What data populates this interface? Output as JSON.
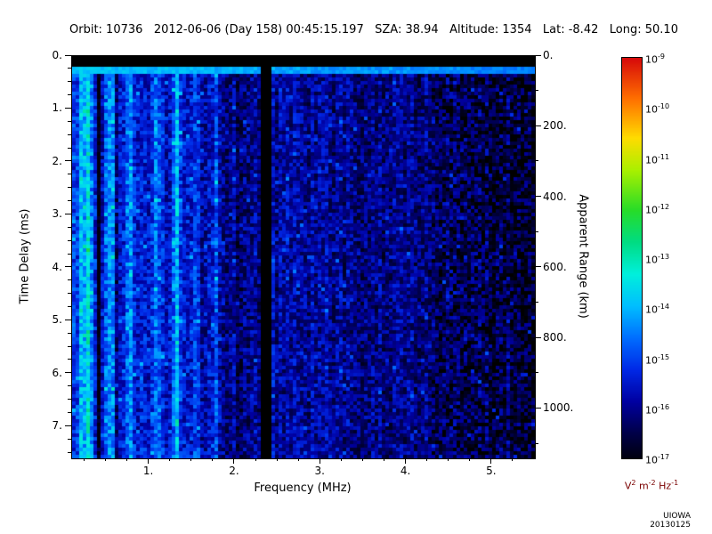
{
  "header": {
    "fields": [
      "Orbit: 10736",
      "2012-06-06 (Day 158) 00:45:15.197",
      "SZA: 38.94",
      "Altitude: 1354",
      "Lat: -8.42",
      "Long: 50.10"
    ]
  },
  "chart_data": {
    "type": "heatmap",
    "title": "",
    "xlabel": "Frequency (MHz)",
    "ylabel_left": "Time Delay (ms)",
    "ylabel_right": "Apparent Range (km)",
    "x_range_mhz": [
      0.1,
      5.5
    ],
    "x_tick_values": [
      1,
      2,
      3,
      4,
      5
    ],
    "x_tick_labels": [
      "1.",
      "2.",
      "3.",
      "4.",
      "5."
    ],
    "y_range_ms": [
      0,
      7.6
    ],
    "y_tick_values_ms": [
      0,
      1,
      2,
      3,
      4,
      5,
      6,
      7
    ],
    "y_tick_labels_ms": [
      "0.",
      "1.",
      "2.",
      "3.",
      "4.",
      "5.",
      "6.",
      "7."
    ],
    "km_per_ms": 150,
    "range_tick_values_km": [
      0,
      200,
      400,
      600,
      800,
      1000
    ],
    "range_tick_labels_km": [
      "0.",
      "200.",
      "400.",
      "600.",
      "800.",
      "1000."
    ],
    "colorbar": {
      "scale": "log10",
      "tick_exponents": [
        -9,
        -10,
        -11,
        -12,
        -13,
        -14,
        -15,
        -16,
        -17
      ],
      "units_parts": [
        {
          "base": "V",
          "exp": "2"
        },
        {
          "base": "m",
          "exp": "-2"
        },
        {
          "base": "Hz",
          "exp": "-1"
        }
      ]
    },
    "colormap_stops": [
      [
        0.0,
        "#000010"
      ],
      [
        0.06,
        "#000046"
      ],
      [
        0.14,
        "#0000a0"
      ],
      [
        0.22,
        "#0028e6"
      ],
      [
        0.3,
        "#006eff"
      ],
      [
        0.38,
        "#00beff"
      ],
      [
        0.46,
        "#00f0dc"
      ],
      [
        0.54,
        "#00dc82"
      ],
      [
        0.62,
        "#28dc28"
      ],
      [
        0.72,
        "#aaf000"
      ],
      [
        0.8,
        "#ffdc00"
      ],
      [
        0.9,
        "#ff6e00"
      ],
      [
        1.0,
        "#d70a0a"
      ]
    ],
    "features": {
      "noise_floor_exp": -16.15,
      "black_top_band_ms": [
        0,
        0.17
      ],
      "bright_horizontal_line_ms": [
        0.17,
        0.31
      ],
      "bright_horizontal_line_exp": -13.85,
      "transmitter_gap_mhz": [
        2.3,
        2.41
      ],
      "low_freq_enhancement_below_mhz": 2.3,
      "low_freq_enhancement_amp": 1.15,
      "bright_vertical_lines": [
        {
          "f": 0.22,
          "amp": 1.3,
          "w": 0.04
        },
        {
          "f": 0.3,
          "amp": 1.6,
          "w": 0.035
        },
        {
          "f": 0.55,
          "amp": 1.2,
          "w": 0.05
        },
        {
          "f": 0.78,
          "amp": 0.9,
          "w": 0.05
        },
        {
          "f": 1.08,
          "amp": 0.8,
          "w": 0.05
        },
        {
          "f": 1.32,
          "amp": 1.6,
          "w": 0.045
        },
        {
          "f": 1.55,
          "amp": 0.7,
          "w": 0.04
        },
        {
          "f": 1.78,
          "amp": 1.0,
          "w": 0.04
        }
      ],
      "dark_vertical_lines": [
        {
          "f": 0.42,
          "amp": 2.2,
          "w": 0.03
        },
        {
          "f": 0.62,
          "amp": 0.9,
          "w": 0.02
        },
        {
          "f": 2.05,
          "amp": 0.6,
          "w": 0.04
        }
      ],
      "dark_speckle_region_mhz": [
        4.3,
        5.5
      ]
    },
    "render_seed": 20130125
  },
  "credit": "UIOWA 20130125",
  "colors": {
    "background": "#ffffff",
    "text": "#000000",
    "units_label": "#7a0000",
    "plot_black": "#000000"
  }
}
